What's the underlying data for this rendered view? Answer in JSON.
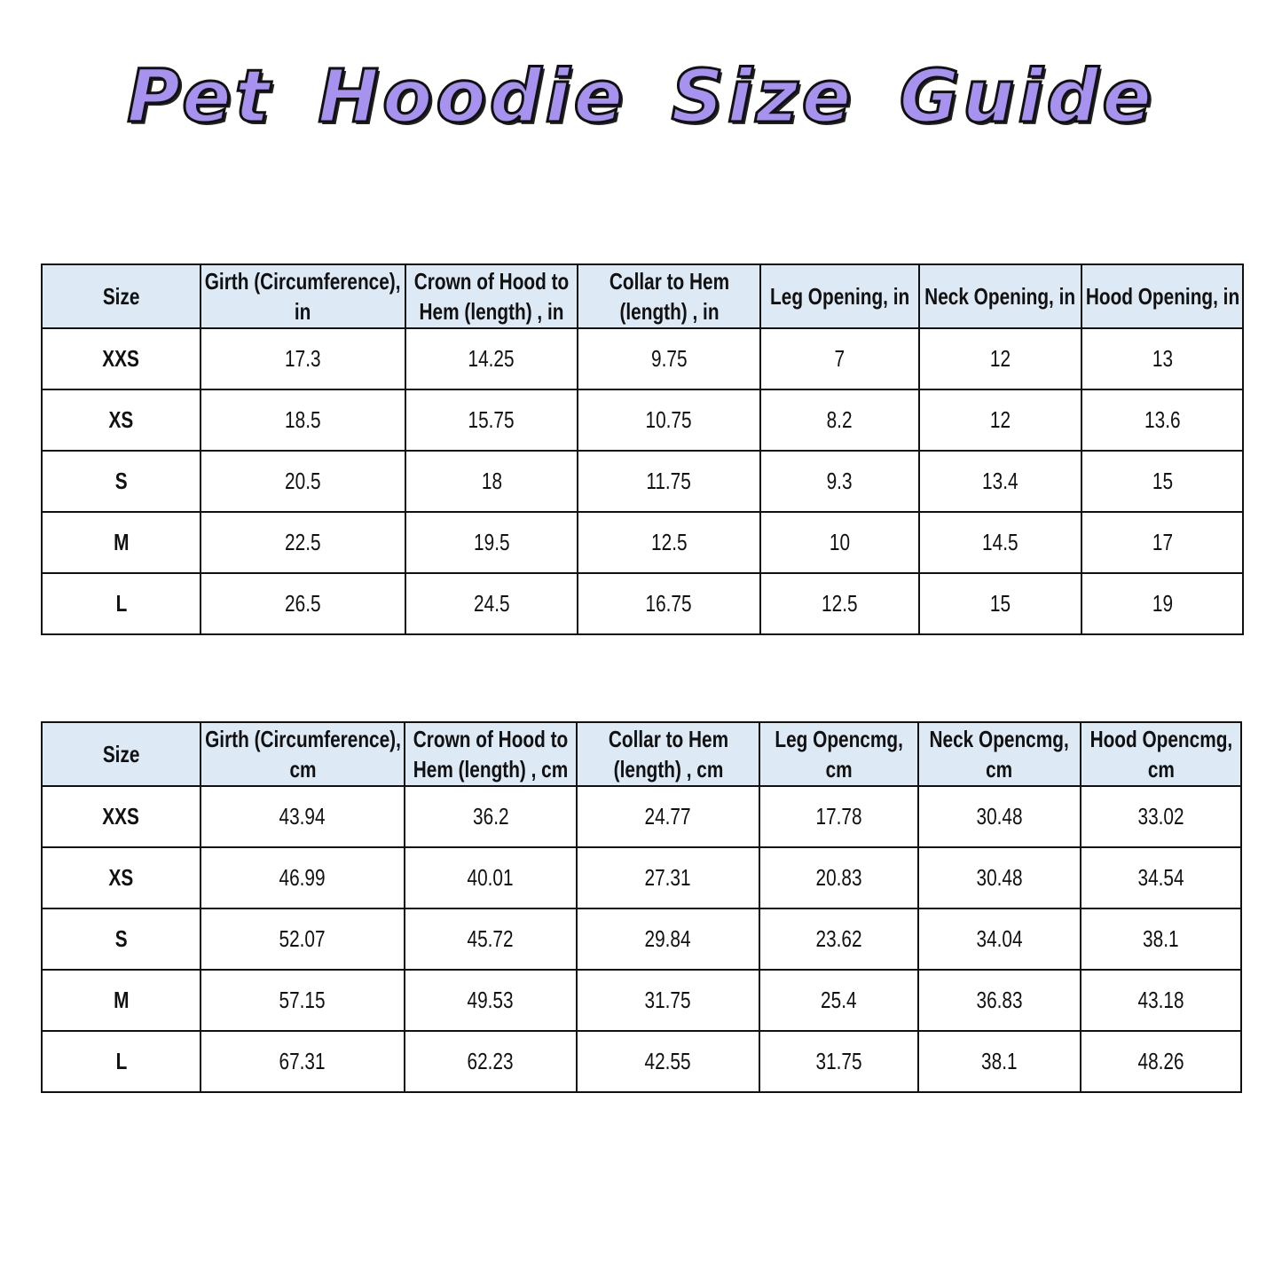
{
  "title": "Pet Hoodie Size Guide",
  "tables": [
    {
      "headers": [
        "Size",
        "Girth (Circumference), in",
        "Crown of Hood to Hem (length) , in",
        "Collar to Hem (length) , in",
        "Leg Opening, in",
        "Neck Opening, in",
        "Hood Opening, in"
      ],
      "rows": [
        [
          "XXS",
          "17.3",
          "14.25",
          "9.75",
          "7",
          "12",
          "13"
        ],
        [
          "XS",
          "18.5",
          "15.75",
          "10.75",
          "8.2",
          "12",
          "13.6"
        ],
        [
          "S",
          "20.5",
          "18",
          "11.75",
          "9.3",
          "13.4",
          "15"
        ],
        [
          "M",
          "22.5",
          "19.5",
          "12.5",
          "10",
          "14.5",
          "17"
        ],
        [
          "L",
          "26.5",
          "24.5",
          "16.75",
          "12.5",
          "15",
          "19"
        ]
      ]
    },
    {
      "headers": [
        "Size",
        "Girth (Circumference), cm",
        "Crown of Hood to Hem (length) , cm",
        "Collar to Hem (length) , cm",
        "Leg Opencmg, cm",
        "Neck Opencmg, cm",
        "Hood Opencmg, cm"
      ],
      "rows": [
        [
          "XXS",
          "43.94",
          "36.2",
          "24.77",
          "17.78",
          "30.48",
          "33.02"
        ],
        [
          "XS",
          "46.99",
          "40.01",
          "27.31",
          "20.83",
          "30.48",
          "34.54"
        ],
        [
          "S",
          "52.07",
          "45.72",
          "29.84",
          "23.62",
          "34.04",
          "38.1"
        ],
        [
          "M",
          "57.15",
          "49.53",
          "31.75",
          "25.4",
          "36.83",
          "43.18"
        ],
        [
          "L",
          "67.31",
          "62.23",
          "42.55",
          "31.75",
          "38.1",
          "48.26"
        ]
      ]
    }
  ],
  "colors": {
    "title_fill": "#a892f0",
    "header_bg": "#dde9f5"
  }
}
